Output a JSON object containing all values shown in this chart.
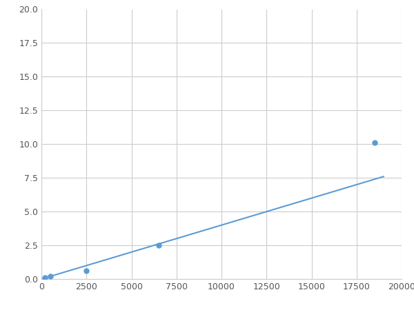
{
  "x": [
    200,
    500,
    2500,
    6500,
    18500
  ],
  "y": [
    0.1,
    0.2,
    0.6,
    2.5,
    10.1
  ],
  "line_color": "#5B9BD5",
  "marker_color": "#5B9BD5",
  "marker_size": 5,
  "line_width": 1.5,
  "xlim": [
    0,
    20000
  ],
  "ylim": [
    0,
    20
  ],
  "xticks": [
    0,
    2500,
    5000,
    7500,
    10000,
    12500,
    15000,
    17500,
    20000
  ],
  "yticks": [
    0.0,
    2.5,
    5.0,
    7.5,
    10.0,
    12.5,
    15.0,
    17.5,
    20.0
  ],
  "grid_color": "#CCCCCC",
  "background_color": "#FFFFFF",
  "figure_background": "#FFFFFF"
}
